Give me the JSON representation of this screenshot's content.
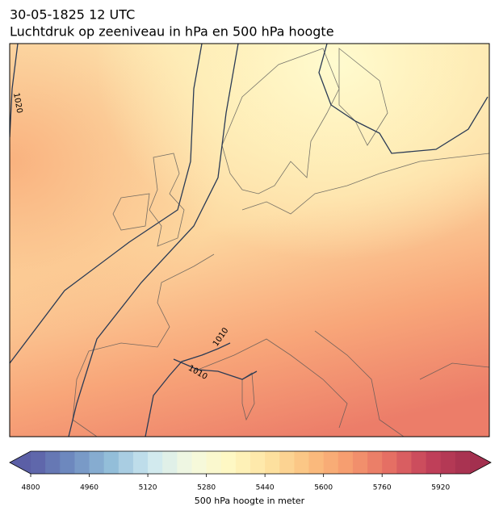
{
  "header": {
    "title": "30-05-1825 12 UTC",
    "subtitle": "Luchtdruk op zeeniveau in hPa en 500 hPa hoogte"
  },
  "map": {
    "isobar_labels": [
      "1020",
      "1010",
      "1010"
    ]
  },
  "colorbar": {
    "range": [
      4800,
      6000
    ],
    "step": 40,
    "ticks": [
      4800,
      4960,
      5120,
      5280,
      5440,
      5600,
      5760,
      5920
    ],
    "label": "500 hPa hoogte in meter",
    "colors": [
      "#5b5fa6",
      "#6f8cc0",
      "#92bdd9",
      "#cde8f0",
      "#f4f9e0",
      "#fff8c2",
      "#fde2a0",
      "#fbbf7f",
      "#f59a6e",
      "#e56e64",
      "#c2405a",
      "#a3304f"
    ]
  }
}
